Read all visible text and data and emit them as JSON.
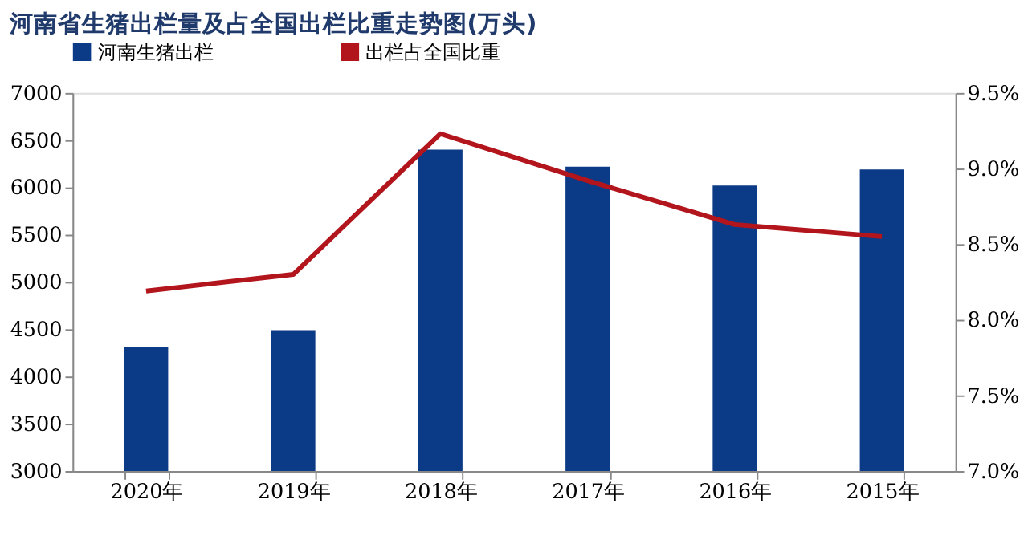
{
  "chart_data": {
    "type": "bar",
    "title": "河南省生猪出栏量及占全国出栏比重走势图(万头)",
    "categories": [
      "2020年",
      "2019年",
      "2018年",
      "2017年",
      "2016年",
      "2015年"
    ],
    "series": [
      {
        "name": "河南生猪出栏",
        "color": "#0b3a86",
        "values": [
          4310,
          4490,
          6400,
          6220,
          6020,
          6190
        ]
      },
      {
        "name": "出栏占全国比重",
        "type": "line",
        "axis": "y2",
        "color": "#b3151d",
        "values": [
          8.19,
          8.3,
          9.23,
          8.92,
          8.63,
          8.55
        ]
      }
    ],
    "ylim": [
      3000,
      7000
    ],
    "yticks": [
      3000,
      3500,
      4000,
      4500,
      5000,
      5500,
      6000,
      6500,
      7000
    ],
    "y2lim": [
      7.0,
      9.5
    ],
    "y2ticks": [
      {
        "value": 7.0,
        "label": "7.0%"
      },
      {
        "value": 7.5,
        "label": "7.5%"
      },
      {
        "value": 8.0,
        "label": "8.0%"
      },
      {
        "value": 8.5,
        "label": "8.5%"
      },
      {
        "value": 9.0,
        "label": "9.0%"
      },
      {
        "value": 9.5,
        "label": "9.5%"
      }
    ],
    "legend": "top",
    "grid": false,
    "marker": "none",
    "line_style": "solid"
  }
}
